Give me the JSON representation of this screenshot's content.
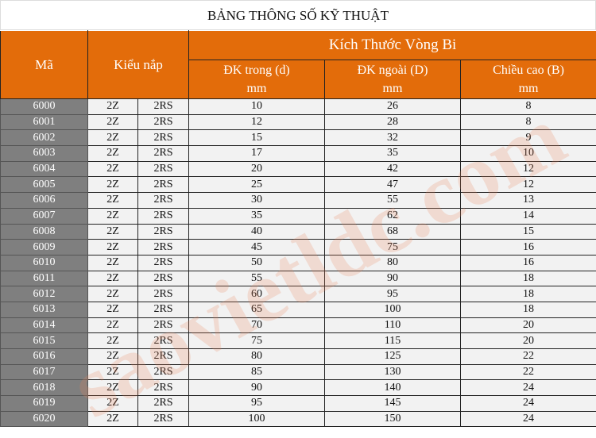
{
  "title": "BẢNG THÔNG SỐ KỸ THUẬT",
  "headers": {
    "code": "Mã",
    "cap_type": "Kiểu nắp",
    "dimensions": "Kích Thước Vòng Bi",
    "inner": "ĐK trong (d)",
    "outer": "ĐK ngoài (D)",
    "height": "Chiều cao (B)",
    "unit": "mm"
  },
  "colors": {
    "header": "#e36c0a",
    "code_cell": "#7f7f7f",
    "cell": "#f2f2f2"
  },
  "watermark": "saovietldc.com",
  "rows": [
    [
      "6000",
      "2Z",
      "2RS",
      "10",
      "26",
      "8"
    ],
    [
      "6001",
      "2Z",
      "2RS",
      "12",
      "28",
      "8"
    ],
    [
      "6002",
      "2Z",
      "2RS",
      "15",
      "32",
      "9"
    ],
    [
      "6003",
      "2Z",
      "2RS",
      "17",
      "35",
      "10"
    ],
    [
      "6004",
      "2Z",
      "2RS",
      "20",
      "42",
      "12"
    ],
    [
      "6005",
      "2Z",
      "2RS",
      "25",
      "47",
      "12"
    ],
    [
      "6006",
      "2Z",
      "2RS",
      "30",
      "55",
      "13"
    ],
    [
      "6007",
      "2Z",
      "2RS",
      "35",
      "62",
      "14"
    ],
    [
      "6008",
      "2Z",
      "2RS",
      "40",
      "68",
      "15"
    ],
    [
      "6009",
      "2Z",
      "2RS",
      "45",
      "75",
      "16"
    ],
    [
      "6010",
      "2Z",
      "2RS",
      "50",
      "80",
      "16"
    ],
    [
      "6011",
      "2Z",
      "2RS",
      "55",
      "90",
      "18"
    ],
    [
      "6012",
      "2Z",
      "2RS",
      "60",
      "95",
      "18"
    ],
    [
      "6013",
      "2Z",
      "2RS",
      "65",
      "100",
      "18"
    ],
    [
      "6014",
      "2Z",
      "2RS",
      "70",
      "110",
      "20"
    ],
    [
      "6015",
      "2Z",
      "2RS",
      "75",
      "115",
      "20"
    ],
    [
      "6016",
      "2Z",
      "2RS",
      "80",
      "125",
      "22"
    ],
    [
      "6017",
      "2Z",
      "2RS",
      "85",
      "130",
      "22"
    ],
    [
      "6018",
      "2Z",
      "2RS",
      "90",
      "140",
      "24"
    ],
    [
      "6019",
      "2Z",
      "2RS",
      "95",
      "145",
      "24"
    ],
    [
      "6020",
      "2Z",
      "2RS",
      "100",
      "150",
      "24"
    ]
  ]
}
